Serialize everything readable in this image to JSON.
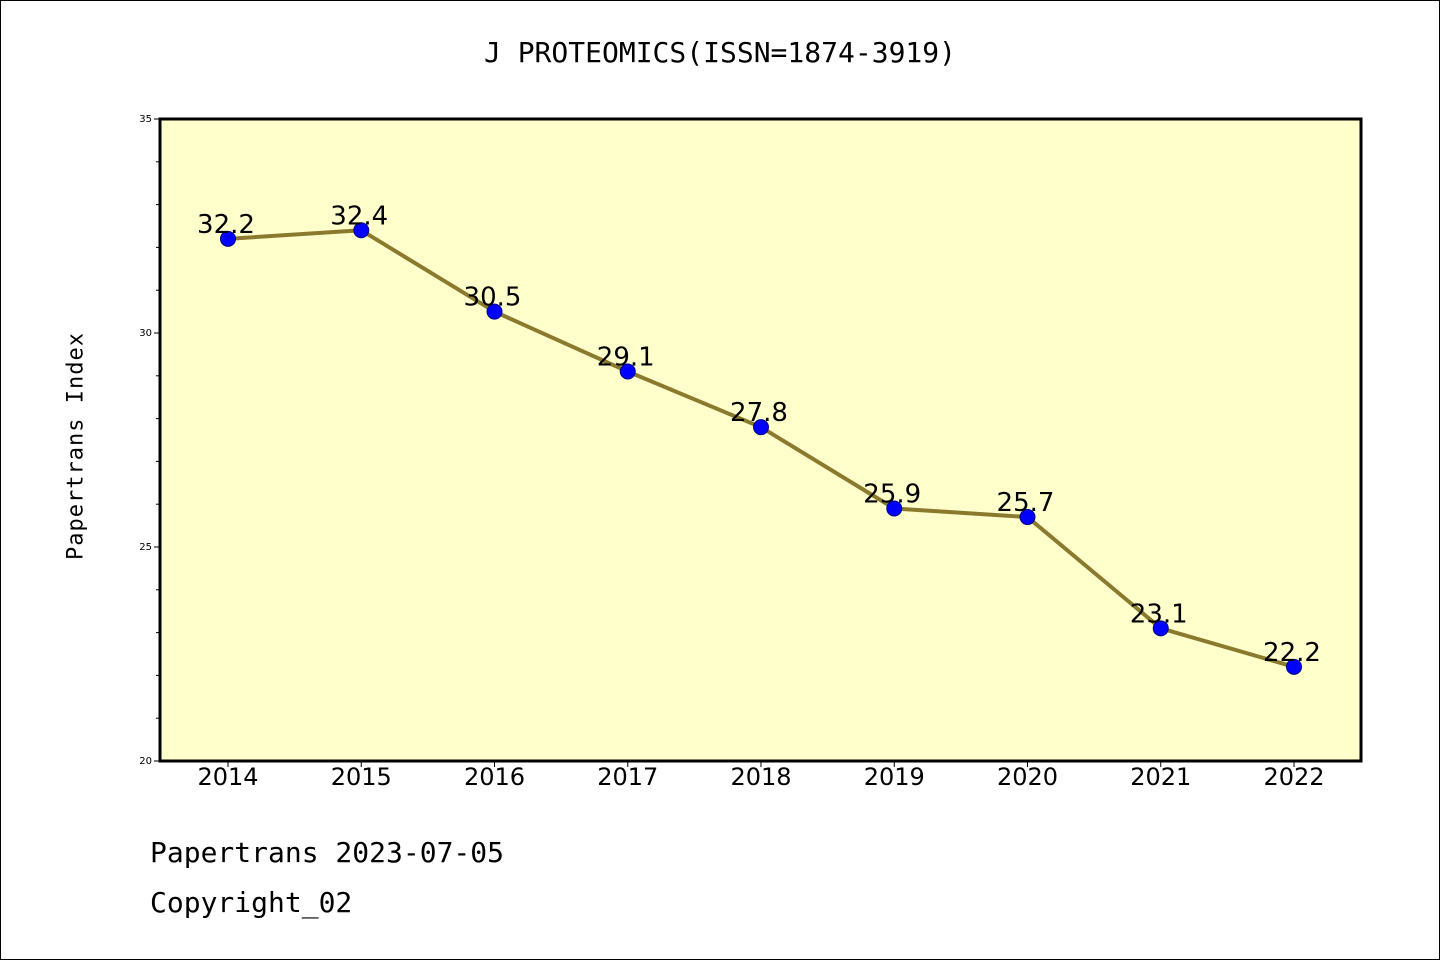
{
  "chart_data": {
    "type": "line",
    "title": "J PROTEOMICS(ISSN=1874-3919)",
    "xlabel": "",
    "ylabel": "Papertrans Index",
    "categories": [
      "2014",
      "2015",
      "2016",
      "2017",
      "2018",
      "2019",
      "2020",
      "2021",
      "2022"
    ],
    "series": [
      {
        "values": [
          32.2,
          32.4,
          30.5,
          29.1,
          27.8,
          25.9,
          25.7,
          23.1,
          22.2
        ]
      }
    ],
    "data_labels": [
      "32.2",
      "32.4",
      "30.5",
      "29.1",
      "27.8",
      "25.9",
      "25.7",
      "23.1",
      "22.2"
    ],
    "ylim": [
      20,
      35
    ],
    "yticks": [
      20,
      25,
      30,
      35
    ],
    "grid": false,
    "legend": "none",
    "colors": {
      "plot_background": "#FFFFCC",
      "line": "#8B7A2E",
      "marker": "#0000FF"
    }
  },
  "footer": {
    "source": "Papertrans 2023-07-05",
    "copyright": "Copyright_02"
  }
}
